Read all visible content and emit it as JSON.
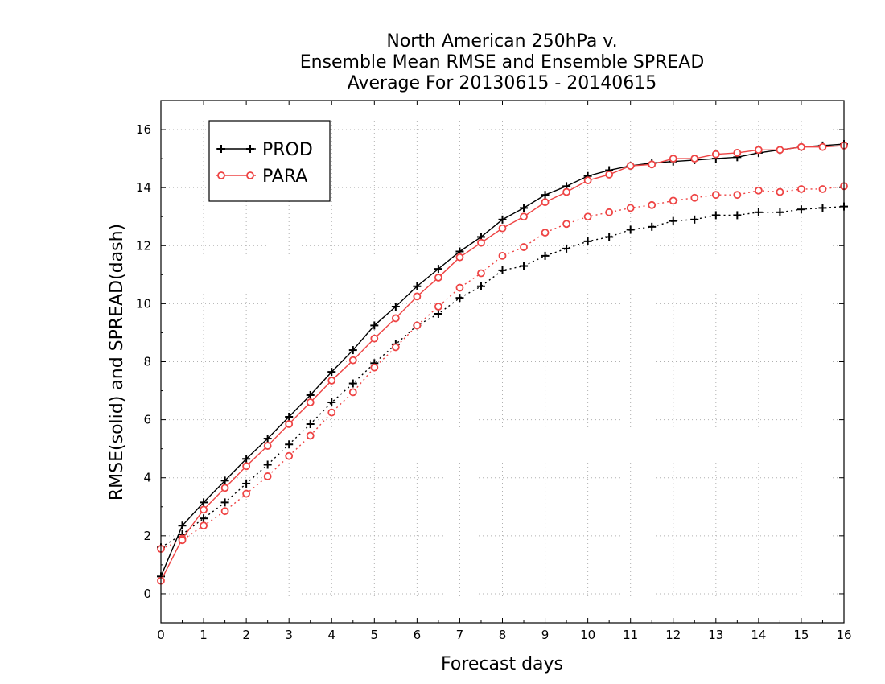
{
  "chart_data": {
    "type": "line",
    "title": [
      "North American 250hPa v.",
      "Ensemble Mean RMSE and Ensemble SPREAD",
      "Average For 20130615 - 20140615"
    ],
    "xlabel": "Forecast days",
    "ylabel": "RMSE(solid) and SPREAD(dash)",
    "xlim": [
      0,
      16
    ],
    "ylim": [
      -1,
      17
    ],
    "xticks": [
      0,
      1,
      2,
      3,
      4,
      5,
      6,
      7,
      8,
      9,
      10,
      11,
      12,
      13,
      14,
      15,
      16
    ],
    "yticks": [
      0,
      2,
      4,
      6,
      8,
      10,
      12,
      14,
      16
    ],
    "grid": true,
    "legend_position": "top-left",
    "x": [
      0,
      0.5,
      1,
      1.5,
      2,
      2.5,
      3,
      3.5,
      4,
      4.5,
      5,
      5.5,
      6,
      6.5,
      7,
      7.5,
      8,
      8.5,
      9,
      9.5,
      10,
      10.5,
      11,
      11.5,
      12,
      12.5,
      13,
      13.5,
      14,
      14.5,
      15,
      15.5,
      16
    ],
    "series": [
      {
        "name": "PROD",
        "color": "#000000",
        "marker": "plus",
        "rmse": [
          0.6,
          2.35,
          3.15,
          3.9,
          4.65,
          5.35,
          6.1,
          6.85,
          7.65,
          8.4,
          9.25,
          9.9,
          10.6,
          11.2,
          11.8,
          12.3,
          12.9,
          13.3,
          13.75,
          14.05,
          14.4,
          14.6,
          14.75,
          14.85,
          14.9,
          14.95,
          15.0,
          15.05,
          15.2,
          15.3,
          15.4,
          15.45,
          15.5
        ],
        "spread": [
          1.6,
          2.05,
          2.6,
          3.15,
          3.8,
          4.45,
          5.15,
          5.85,
          6.6,
          7.25,
          7.95,
          8.6,
          9.25,
          9.65,
          10.2,
          10.6,
          11.15,
          11.3,
          11.65,
          11.9,
          12.15,
          12.3,
          12.55,
          12.65,
          12.85,
          12.9,
          13.05,
          13.05,
          13.15,
          13.15,
          13.25,
          13.3,
          13.35
        ]
      },
      {
        "name": "PARA",
        "color": "#ee4444",
        "marker": "circle",
        "rmse": [
          0.45,
          1.9,
          2.9,
          3.65,
          4.4,
          5.1,
          5.85,
          6.6,
          7.35,
          8.05,
          8.8,
          9.5,
          10.25,
          10.9,
          11.6,
          12.1,
          12.6,
          13.0,
          13.5,
          13.85,
          14.25,
          14.45,
          14.75,
          14.8,
          15.0,
          15.0,
          15.15,
          15.2,
          15.3,
          15.3,
          15.4,
          15.4,
          15.45
        ],
        "spread": [
          1.55,
          1.85,
          2.35,
          2.85,
          3.45,
          4.05,
          4.75,
          5.45,
          6.25,
          6.95,
          7.8,
          8.5,
          9.25,
          9.9,
          10.55,
          11.05,
          11.65,
          11.95,
          12.45,
          12.75,
          13.0,
          13.15,
          13.3,
          13.4,
          13.55,
          13.65,
          13.75,
          13.75,
          13.9,
          13.85,
          13.95,
          13.95,
          14.05
        ]
      }
    ]
  }
}
